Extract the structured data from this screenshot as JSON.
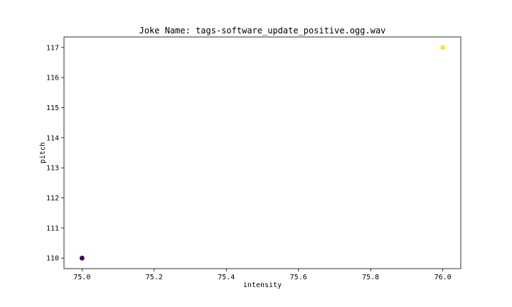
{
  "chart_data": {
    "type": "scatter",
    "title": "Joke Name: tags-software_update_positive.ogg.wav",
    "xlabel": "intensity",
    "ylabel": "pitch",
    "xlim": [
      74.95,
      76.05
    ],
    "ylim": [
      109.65,
      117.35
    ],
    "xticks": [
      75.0,
      75.2,
      75.4,
      75.6,
      75.8,
      76.0
    ],
    "xtick_labels": [
      "75.0",
      "75.2",
      "75.4",
      "75.6",
      "75.8",
      "76.0"
    ],
    "yticks": [
      110,
      111,
      112,
      113,
      114,
      115,
      116,
      117
    ],
    "ytick_labels": [
      "110",
      "111",
      "112",
      "113",
      "114",
      "115",
      "116",
      "117"
    ],
    "grid": false,
    "colormap": "viridis",
    "points": [
      {
        "x": 75.0,
        "y": 110,
        "color": "#440154"
      },
      {
        "x": 76.0,
        "y": 117,
        "color": "#fde725"
      }
    ]
  }
}
